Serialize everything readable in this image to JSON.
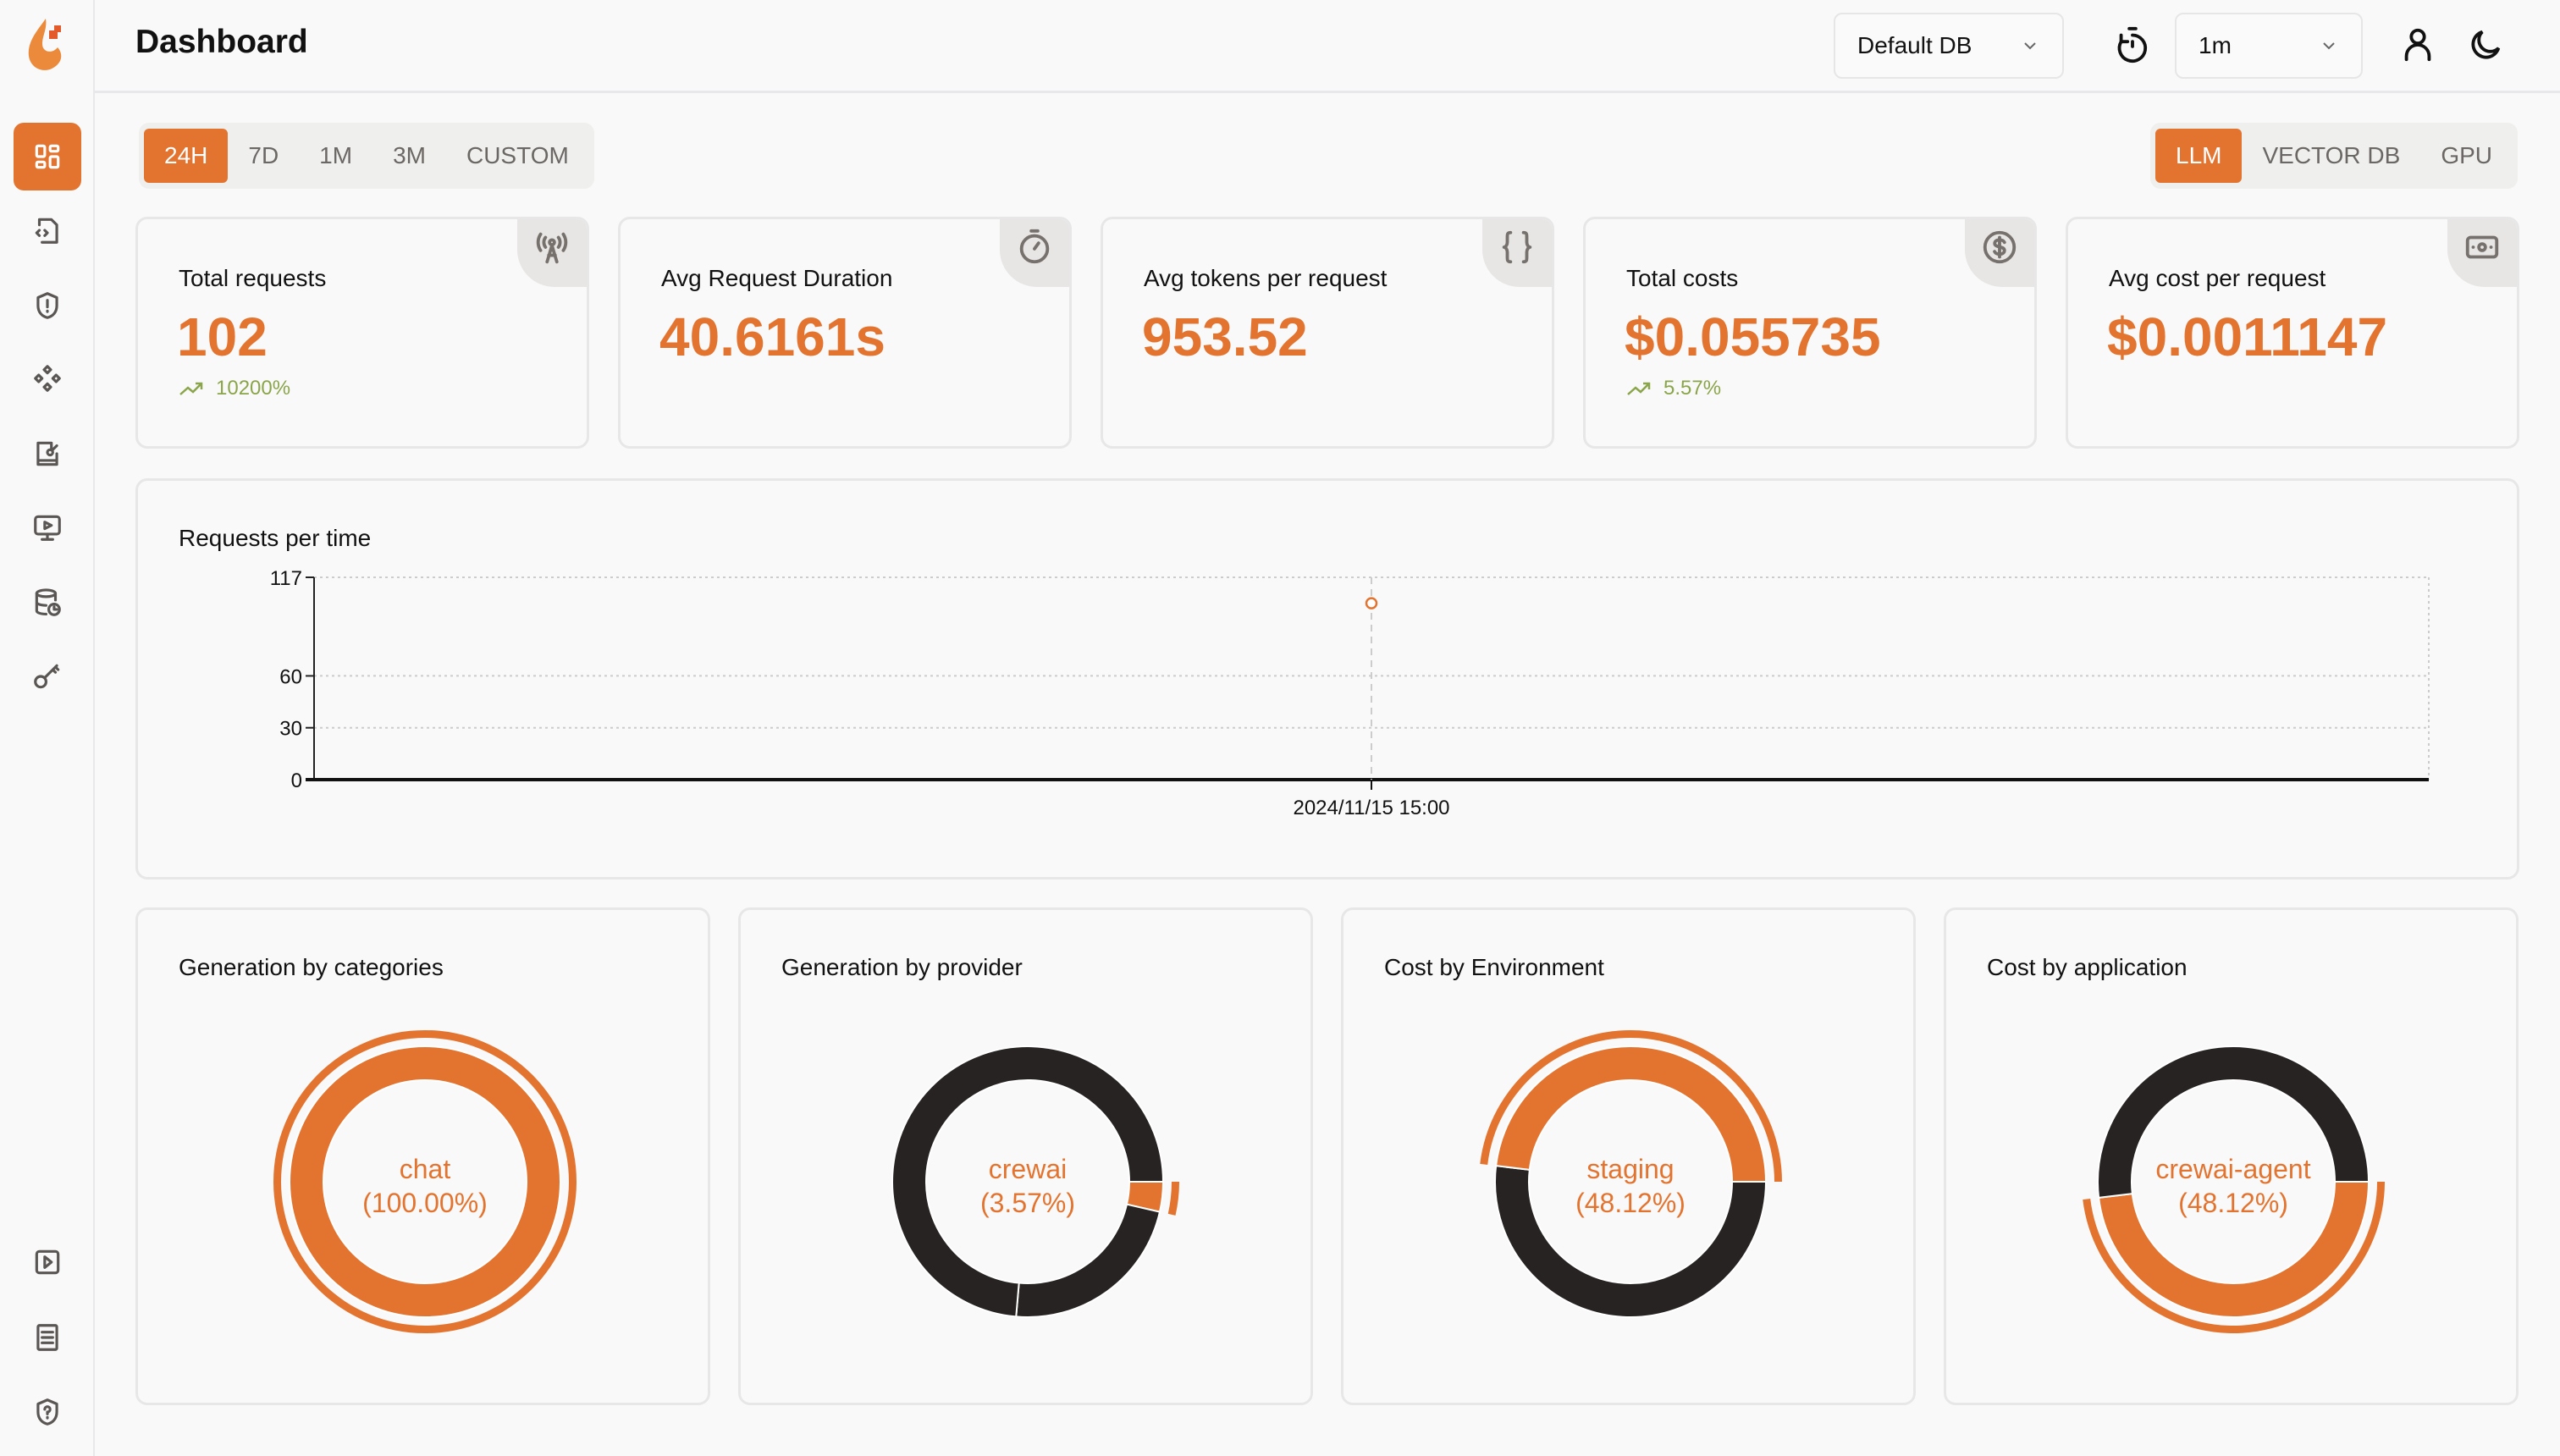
{
  "header": {
    "title": "Dashboard",
    "db_select": "Default DB",
    "refresh_select": "1m"
  },
  "colors": {
    "accent": "#e37430",
    "dark": "#272322",
    "positive": "#8aa54a"
  },
  "sidebar": {
    "items": [
      {
        "icon": "dashboard-icon",
        "active": true
      },
      {
        "icon": "file-code-icon"
      },
      {
        "icon": "shield-alert-icon"
      },
      {
        "icon": "components-icon"
      },
      {
        "icon": "book-edit-icon"
      },
      {
        "icon": "monitor-play-icon"
      },
      {
        "icon": "database-history-icon"
      },
      {
        "icon": "key-icon"
      }
    ],
    "bottom": [
      {
        "icon": "play-square-icon"
      },
      {
        "icon": "docs-icon"
      },
      {
        "icon": "shield-question-icon"
      }
    ]
  },
  "time_tabs": [
    {
      "label": "24H",
      "active": true
    },
    {
      "label": "7D"
    },
    {
      "label": "1M"
    },
    {
      "label": "3M"
    },
    {
      "label": "CUSTOM"
    }
  ],
  "type_tabs": [
    {
      "label": "LLM",
      "active": true
    },
    {
      "label": "VECTOR DB"
    },
    {
      "label": "GPU"
    }
  ],
  "stats": [
    {
      "label": "Total requests",
      "value": "102",
      "change": "10200%",
      "trend": "up",
      "icon": "antenna-icon"
    },
    {
      "label": "Avg Request Duration",
      "value": "40.6161s",
      "icon": "timer-icon"
    },
    {
      "label": "Avg tokens per request",
      "value": "953.52",
      "icon": "braces-icon"
    },
    {
      "label": "Total costs",
      "value": "$0.055735",
      "change": "5.57%",
      "trend": "up",
      "icon": "dollar-circle-icon"
    },
    {
      "label": "Avg cost per request",
      "value": "$0.0011147",
      "icon": "banknote-icon"
    }
  ],
  "chart_data": [
    {
      "type": "line",
      "title": "Requests per time",
      "categories": [
        "2024/11/15 15:00"
      ],
      "values": [
        102
      ],
      "ylim": [
        0,
        117
      ],
      "yticks": [
        "0",
        "30",
        "60",
        "117"
      ],
      "grid": true
    },
    {
      "type": "pie",
      "title": "Generation by categories",
      "slices": [
        {
          "name": "chat",
          "value": 100.0,
          "label": "(100.00%)"
        }
      ],
      "highlight": 0
    },
    {
      "type": "pie",
      "title": "Generation by provider",
      "slices": [
        {
          "name": "crewai",
          "value": 3.57,
          "label": "(3.57%)"
        },
        {
          "value": 22.8
        },
        {
          "value": 73.63
        }
      ],
      "highlight": 0
    },
    {
      "type": "pie",
      "title": "Cost by Environment",
      "slices": [
        {
          "value": 51.88
        },
        {
          "name": "staging",
          "value": 48.12,
          "label": "(48.12%)"
        }
      ],
      "highlight": 1
    },
    {
      "type": "pie",
      "title": "Cost by application",
      "slices": [
        {
          "name": "crewai-agent",
          "value": 48.12,
          "label": "(48.12%)"
        },
        {
          "value": 51.88
        }
      ],
      "highlight": 0
    }
  ]
}
